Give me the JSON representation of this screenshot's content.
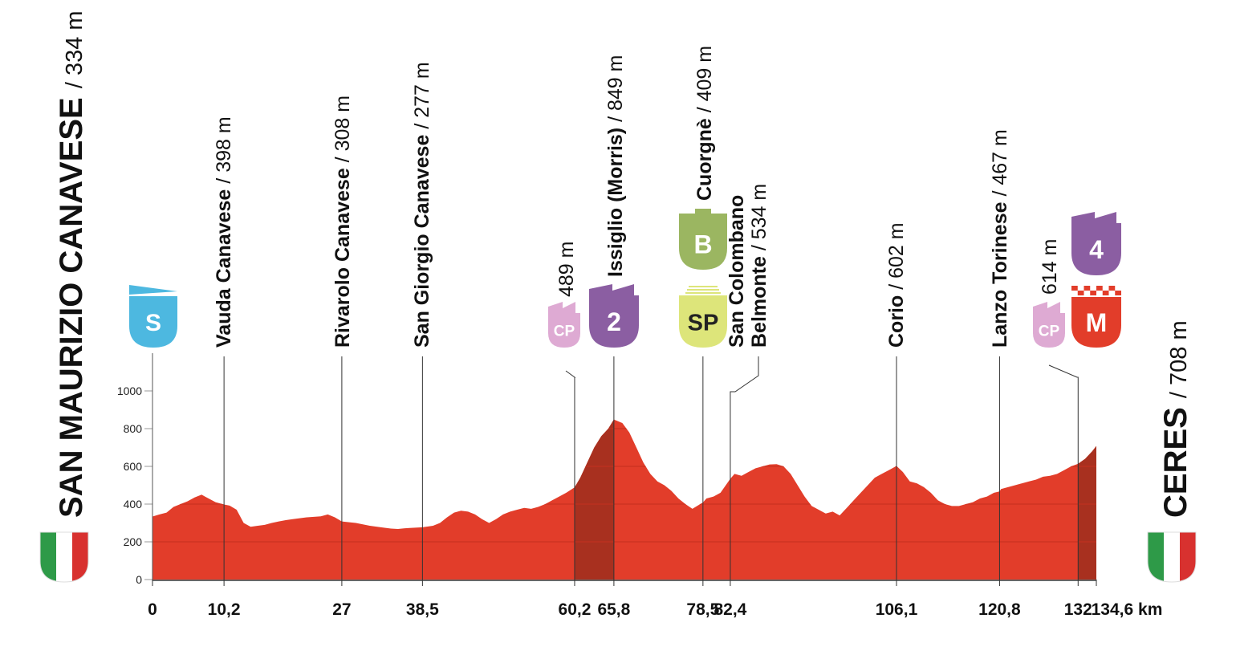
{
  "chart_data": {
    "type": "area",
    "ylim": [
      0,
      1000
    ],
    "y_ticks": [
      0,
      200,
      400,
      600,
      800,
      1000
    ],
    "y_tick_labels": [
      "0",
      "200",
      "400",
      "600",
      "800",
      "1000"
    ],
    "xlim": [
      0,
      134.6
    ],
    "x_ticks": [
      0,
      10.2,
      27,
      38.5,
      60.2,
      65.8,
      78.5,
      82.4,
      106.1,
      120.8,
      132,
      134.6
    ],
    "x_tick_labels": [
      "0",
      "10,2",
      "27",
      "38,5",
      "60,2",
      "65,8",
      "78,5",
      "82,4",
      "106,1",
      "120,8",
      "132",
      "134,6 km"
    ],
    "grid": true,
    "colors": {
      "profile": "#e23d2a",
      "climb": "#a8301f",
      "grid": "#c4301f"
    },
    "profile": {
      "x": [
        0,
        1,
        2,
        3,
        4,
        5,
        6,
        7,
        8,
        9,
        10.2,
        11,
        12,
        13,
        14,
        15,
        16,
        17,
        18,
        19,
        20,
        22,
        24,
        25,
        26,
        27,
        29,
        31,
        33,
        34,
        35,
        36,
        38.5,
        40,
        41,
        42,
        43,
        44,
        45,
        46,
        47,
        48,
        49,
        50,
        51,
        52,
        53,
        54,
        55,
        56,
        57,
        58,
        59,
        60.2,
        61,
        62,
        63,
        64,
        65,
        65.8,
        66,
        67,
        68,
        69,
        70,
        71,
        72,
        73,
        74,
        75,
        76,
        77,
        78.5,
        79,
        80,
        81,
        82.4,
        83,
        84,
        85,
        86,
        87,
        88,
        89,
        90,
        91,
        92,
        93,
        94,
        95,
        96,
        97,
        98,
        99,
        100,
        101,
        102,
        103,
        104,
        105,
        106.1,
        107,
        108,
        109,
        110,
        111,
        112,
        113,
        114,
        115,
        116,
        117,
        118,
        119,
        120,
        120.8,
        121,
        122,
        123,
        124,
        125,
        126,
        127,
        128,
        129,
        130,
        131,
        132,
        133,
        134,
        134.6
      ],
      "y": [
        334,
        345,
        355,
        385,
        400,
        415,
        435,
        450,
        430,
        410,
        398,
        392,
        370,
        300,
        280,
        285,
        290,
        300,
        308,
        315,
        320,
        330,
        335,
        345,
        330,
        308,
        300,
        285,
        275,
        270,
        268,
        272,
        277,
        285,
        300,
        330,
        355,
        365,
        360,
        345,
        320,
        300,
        320,
        345,
        360,
        370,
        380,
        375,
        385,
        400,
        420,
        440,
        460,
        489,
        540,
        620,
        700,
        760,
        800,
        849,
        845,
        830,
        780,
        700,
        620,
        560,
        520,
        500,
        470,
        430,
        400,
        375,
        409,
        430,
        440,
        460,
        534,
        560,
        550,
        570,
        590,
        600,
        610,
        612,
        600,
        560,
        500,
        440,
        390,
        370,
        350,
        360,
        340,
        380,
        420,
        460,
        500,
        540,
        560,
        580,
        602,
        570,
        520,
        510,
        490,
        460,
        420,
        400,
        390,
        390,
        400,
        410,
        430,
        440,
        460,
        467,
        480,
        490,
        500,
        510,
        520,
        530,
        545,
        550,
        560,
        580,
        600,
        614,
        640,
        680,
        708
      ]
    },
    "climb_zones": [
      [
        60.2,
        65.8
      ],
      [
        132,
        134.6
      ]
    ],
    "markers": [
      {
        "x": 10.2,
        "name": "Vauda Canavese",
        "alt": "/ 398 m"
      },
      {
        "x": 27,
        "name": "Rivarolo Canavese",
        "alt": "/ 308 m"
      },
      {
        "x": 38.5,
        "name": "San Giorgio Canavese",
        "alt": "/ 277 m"
      },
      {
        "x": 60.2,
        "name": "",
        "alt": "489 m"
      },
      {
        "x": 65.8,
        "name": "Issiglio (Morris)",
        "alt": "/ 849 m"
      },
      {
        "x": 78.5,
        "name": "Cuorgnè",
        "alt": "/ 409 m"
      },
      {
        "x": 82.4,
        "name": "San Colombano",
        "name2": "Belmonte",
        "alt": "/ 534 m"
      },
      {
        "x": 106.1,
        "name": "Corio",
        "alt": "/ 602 m"
      },
      {
        "x": 120.8,
        "name": "Lanzo Torinese",
        "alt": "/ 467 m"
      },
      {
        "x": 132,
        "name": "",
        "alt": "614 m"
      }
    ],
    "badges": [
      {
        "label": "S",
        "color": "#4db8e0",
        "type": "start"
      },
      {
        "label": "CP",
        "color": "#deaad3",
        "type": "cp"
      },
      {
        "label": "2",
        "color": "#8b5ea2",
        "type": "climb"
      },
      {
        "label": "B",
        "color": "#9bb661",
        "type": "bonus"
      },
      {
        "label": "SP",
        "color": "#dde57a",
        "type": "sprint"
      },
      {
        "label": "CP",
        "color": "#deaad3",
        "type": "cp"
      },
      {
        "label": "4",
        "color": "#8b5ea2",
        "type": "climb"
      },
      {
        "label": "M",
        "color": "#e23d2a",
        "type": "finish"
      }
    ],
    "start": {
      "name": "SAN MAURIZIO CANAVESE",
      "alt": "/ 334 m"
    },
    "finish": {
      "name": "CERES",
      "alt": "/ 708 m"
    },
    "flag_colors": [
      "#2e9a48",
      "#ffffff",
      "#d8312f"
    ]
  }
}
